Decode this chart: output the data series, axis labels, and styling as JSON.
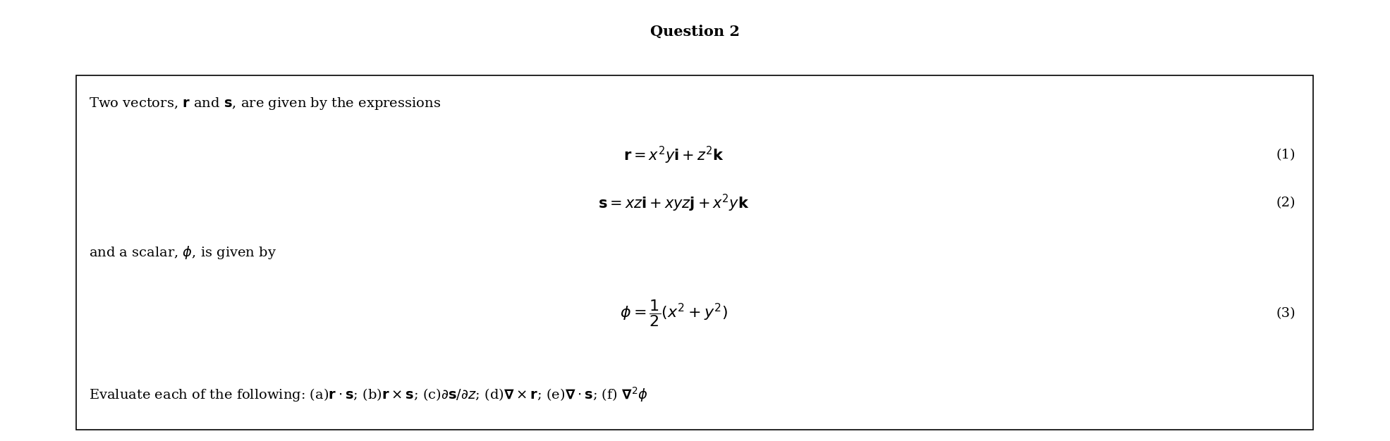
{
  "title": "Question 2",
  "title_fontsize": 15,
  "background_color": "#ffffff",
  "box_edge_color": "#000000",
  "text_color": "#000000",
  "line1": "Two vectors, $\\mathbf{r}$ and $\\mathbf{s}$, are given by the expressions",
  "eq1": "$\\mathbf{r} = x^2y\\mathbf{i} + z^2\\mathbf{k}$",
  "eq1_num": "(1)",
  "eq2": "$\\mathbf{s} = xz\\mathbf{i} + xyz\\mathbf{j} + x^2y\\mathbf{k}$",
  "eq2_num": "(2)",
  "line2": "and a scalar, $\\phi$, is given by",
  "eq3": "$\\phi = \\dfrac{1}{2}(x^2 + y^2)$",
  "eq3_num": "(3)",
  "line3": "Evaluate each of the following: (a)$\\mathbf{r} \\cdot \\mathbf{s}$; (b)$\\mathbf{r} \\times \\mathbf{s}$; (c)$\\partial\\mathbf{s}/\\partial z$; (d)$\\boldsymbol{\\nabla} \\times \\mathbf{r}$; (e)$\\boldsymbol{\\nabla} \\cdot \\mathbf{s}$; (f) $\\boldsymbol{\\nabla}^2\\phi$",
  "figsize": [
    19.71,
    6.26
  ],
  "dpi": 100,
  "content_fs": 14,
  "eq_fs": 15
}
